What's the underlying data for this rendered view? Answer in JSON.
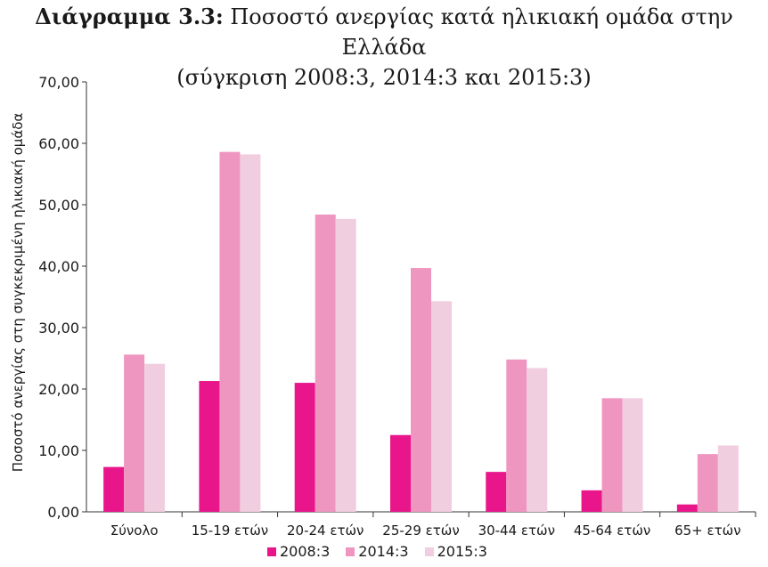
{
  "title": {
    "prefix": "Διάγραμμα 3.3:",
    "text": "Ποσοστό ανεργίας κατά ηλικιακή ομάδα στην Ελλάδα",
    "subtitle": "(σύγκριση 2008:3, 2014:3 και 2015:3)"
  },
  "chart_data": {
    "type": "bar",
    "title": "Διάγραμμα 3.3: Ποσοστό ανεργίας κατά ηλικιακή ομάδα στην Ελλάδα",
    "subtitle": "(σύγκριση 2008:3, 2014:3 και 2015:3)",
    "ylabel": "Ποσοστό ανεργίας στη συγκεκριμένη ηλικιακή ομάδα",
    "xlabel": "",
    "ylim": [
      0,
      70
    ],
    "yticks": [
      "0,00",
      "10,00",
      "20,00",
      "30,00",
      "40,00",
      "50,00",
      "60,00",
      "70,00"
    ],
    "categories": [
      "Σύνολο",
      "15-19 ετών",
      "20-24 ετών",
      "25-29 ετών",
      "30-44 ετών",
      "45-64 ετών",
      "65+ ετών"
    ],
    "series": [
      {
        "name": "2008:3",
        "color": "#e8168a",
        "values": [
          7.3,
          21.3,
          21.0,
          12.5,
          6.5,
          3.5,
          1.2
        ]
      },
      {
        "name": "2014:3",
        "color": "#ee96c0",
        "values": [
          25.6,
          58.6,
          48.4,
          39.7,
          24.8,
          18.5,
          9.4
        ]
      },
      {
        "name": "2015:3",
        "color": "#f1cedf",
        "values": [
          24.1,
          58.2,
          47.7,
          34.3,
          23.4,
          18.5,
          10.8
        ]
      }
    ],
    "legend_position": "bottom",
    "grid": false
  }
}
